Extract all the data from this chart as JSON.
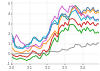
{
  "title": "",
  "xlabel": "",
  "ylabel": "",
  "xlim": [
    0,
    59
  ],
  "ylim": [
    -0.8,
    5.2
  ],
  "background_color": "#ffffff",
  "grid_color": "#dddddd",
  "series": {
    "USA": {
      "color": "#336699",
      "values": [
        1.88,
        1.56,
        0.92,
        0.72,
        0.65,
        0.7,
        0.62,
        0.55,
        0.68,
        0.87,
        0.9,
        0.93,
        1.08,
        1.15,
        1.45,
        1.67,
        1.63,
        1.48,
        1.3,
        1.25,
        1.32,
        1.58,
        1.55,
        1.5,
        1.83,
        1.99,
        2.34,
        2.89,
        2.96,
        3.02,
        2.97,
        2.9,
        3.5,
        3.83,
        4.0,
        3.88,
        3.97,
        3.74,
        3.6,
        3.8,
        4.2,
        4.57,
        4.7,
        4.8,
        4.63,
        4.47,
        4.33,
        3.97,
        4.2,
        4.36,
        4.25,
        4.61,
        4.55,
        4.27,
        4.4,
        4.62,
        4.28,
        4.17,
        4.34,
        4.24
      ]
    },
    "UK": {
      "color": "#ff8800",
      "values": [
        0.62,
        0.45,
        0.22,
        0.28,
        0.17,
        0.17,
        0.13,
        0.07,
        0.22,
        0.3,
        0.32,
        0.23,
        0.36,
        0.56,
        0.85,
        0.78,
        0.72,
        0.62,
        0.56,
        0.52,
        0.6,
        0.98,
        1.05,
        0.98,
        1.25,
        1.36,
        1.61,
        1.85,
        2.05,
        2.27,
        2.1,
        1.98,
        3.15,
        3.5,
        3.82,
        3.67,
        3.74,
        3.5,
        3.4,
        3.72,
        4.19,
        4.43,
        4.55,
        4.7,
        4.45,
        4.22,
        4.0,
        3.75,
        4.05,
        4.15,
        4.0,
        4.35,
        4.3,
        4.1,
        4.25,
        4.45,
        4.1,
        4.0,
        4.18,
        4.05
      ]
    },
    "Germany": {
      "color": "#009900",
      "values": [
        -0.28,
        -0.43,
        -0.49,
        -0.55,
        -0.52,
        -0.46,
        -0.41,
        -0.5,
        -0.52,
        -0.6,
        -0.66,
        -0.58,
        -0.56,
        -0.43,
        -0.3,
        -0.28,
        -0.18,
        -0.25,
        -0.42,
        -0.48,
        -0.24,
        0.02,
        0.04,
        -0.15,
        -0.1,
        0.02,
        0.55,
        0.97,
        1.24,
        1.58,
        1.28,
        1.18,
        1.95,
        2.15,
        2.3,
        2.25,
        2.57,
        2.42,
        2.3,
        2.88,
        2.9,
        2.93,
        2.85,
        2.68,
        2.45,
        2.25,
        2.38,
        2.05,
        2.42,
        2.5,
        2.28,
        2.65,
        2.45,
        2.22,
        2.35,
        2.43,
        2.1,
        2.05,
        2.18,
        2.08
      ]
    },
    "France": {
      "color": "#cc0000",
      "values": [
        -0.03,
        -0.18,
        -0.22,
        -0.28,
        -0.25,
        -0.18,
        -0.15,
        -0.25,
        -0.22,
        -0.28,
        -0.33,
        -0.25,
        -0.1,
        0.05,
        0.3,
        0.23,
        0.17,
        0.05,
        -0.1,
        -0.18,
        0.05,
        0.35,
        0.38,
        0.2,
        0.28,
        0.45,
        0.95,
        1.47,
        1.72,
        2.05,
        1.78,
        1.68,
        2.48,
        2.72,
        2.88,
        2.75,
        3.12,
        2.95,
        2.82,
        3.45,
        3.45,
        3.5,
        3.42,
        3.28,
        3.05,
        2.85,
        2.98,
        2.65,
        3.02,
        3.12,
        2.9,
        3.22,
        3.08,
        2.88,
        3.0,
        3.12,
        2.82,
        2.8,
        3.0,
        2.95
      ]
    },
    "Italy": {
      "color": "#cc44cc",
      "values": [
        1.35,
        1.12,
        1.55,
        1.88,
        1.65,
        1.35,
        1.17,
        1.08,
        1.02,
        0.72,
        0.55,
        0.55,
        0.68,
        0.78,
        0.75,
        0.78,
        0.95,
        0.82,
        0.7,
        0.7,
        0.88,
        1.2,
        1.28,
        1.35,
        1.7,
        2.08,
        2.72,
        3.22,
        3.42,
        3.75,
        3.55,
        3.48,
        4.25,
        4.5,
        4.75,
        4.48,
        4.38,
        4.22,
        4.1,
        4.72,
        4.7,
        4.78,
        4.65,
        4.52,
        4.25,
        4.0,
        4.15,
        3.8,
        3.98,
        3.8,
        3.6,
        3.85,
        3.72,
        3.58,
        3.6,
        3.58,
        3.35,
        3.38,
        3.45,
        3.4
      ]
    },
    "Japan": {
      "color": "#888888",
      "values": [
        -0.02,
        -0.04,
        -0.01,
        0.02,
        -0.01,
        0.02,
        0.02,
        0.02,
        0.04,
        0.03,
        0.02,
        0.02,
        0.07,
        0.09,
        0.1,
        0.08,
        0.04,
        0.04,
        0.02,
        0.02,
        0.08,
        0.08,
        0.07,
        0.1,
        0.2,
        0.21,
        0.25,
        0.25,
        0.22,
        0.22,
        0.2,
        0.18,
        0.25,
        0.28,
        0.48,
        0.42,
        0.4,
        0.38,
        0.38,
        0.55,
        0.58,
        0.62,
        0.65,
        0.95,
        0.92,
        0.9,
        0.88,
        0.68,
        0.68,
        0.72,
        0.72,
        1.05,
        0.93,
        0.85,
        0.88,
        1.05,
        0.92,
        0.9,
        1.1,
        1.05
      ]
    },
    "Canada": {
      "color": "#00aacc",
      "values": [
        1.62,
        1.35,
        0.72,
        0.62,
        0.55,
        0.55,
        0.52,
        0.5,
        0.57,
        0.73,
        0.78,
        0.72,
        0.95,
        1.05,
        1.52,
        1.58,
        1.47,
        1.35,
        1.25,
        1.18,
        1.35,
        1.65,
        1.68,
        1.65,
        1.92,
        2.15,
        2.62,
        2.95,
        3.15,
        3.32,
        3.15,
        2.95,
        3.55,
        3.72,
        3.9,
        3.72,
        3.72,
        3.5,
        3.38,
        3.72,
        4.0,
        4.18,
        4.25,
        4.35,
        4.08,
        3.85,
        3.62,
        3.3,
        3.52,
        3.58,
        3.38,
        3.72,
        3.6,
        3.4,
        3.55,
        3.72,
        3.35,
        3.25,
        3.42,
        3.28
      ]
    }
  },
  "line_styles": {
    "USA": "-",
    "UK": "-",
    "Germany": "-",
    "France": "-",
    "Italy": "-",
    "Japan": "-",
    "Canada": "-"
  },
  "line_width": 0.55,
  "yticks": [
    -1,
    0,
    1,
    2,
    3,
    4,
    5
  ],
  "ytick_labels": [
    "-1",
    "0",
    "1",
    "2",
    "3",
    "4",
    "5"
  ],
  "xtick_pos": [
    0,
    12,
    24,
    36,
    48
  ],
  "xtick_labels": [
    "'20",
    "'21",
    "'22",
    "'23",
    "'24"
  ]
}
